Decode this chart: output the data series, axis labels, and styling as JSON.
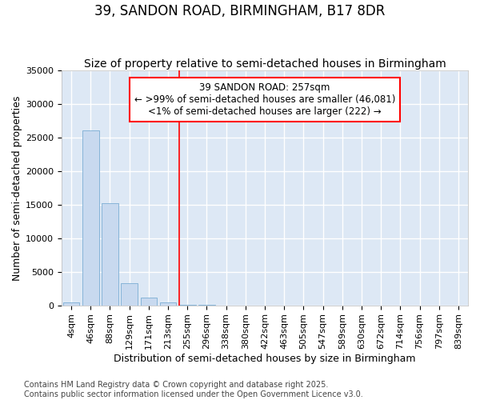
{
  "title": "39, SANDON ROAD, BIRMINGHAM, B17 8DR",
  "subtitle": "Size of property relative to semi-detached houses in Birmingham",
  "xlabel": "Distribution of semi-detached houses by size in Birmingham",
  "ylabel": "Number of semi-detached properties",
  "bar_color": "#c8d9ef",
  "bar_edge_color": "#7aadd4",
  "background_color": "#dde8f5",
  "fig_background": "#ffffff",
  "grid_color": "#ffffff",
  "categories": [
    "4sqm",
    "46sqm",
    "88sqm",
    "129sqm",
    "171sqm",
    "213sqm",
    "255sqm",
    "296sqm",
    "338sqm",
    "380sqm",
    "422sqm",
    "463sqm",
    "505sqm",
    "547sqm",
    "589sqm",
    "630sqm",
    "672sqm",
    "714sqm",
    "756sqm",
    "797sqm",
    "839sqm"
  ],
  "values": [
    400,
    26100,
    15200,
    3300,
    1200,
    400,
    80,
    20,
    5,
    2,
    1,
    0,
    0,
    0,
    0,
    0,
    0,
    0,
    0,
    0,
    0
  ],
  "ylim": [
    0,
    35000
  ],
  "yticks": [
    0,
    5000,
    10000,
    15000,
    20000,
    25000,
    30000,
    35000
  ],
  "red_line_index": 6,
  "annotation_line1": "39 SANDON ROAD: 257sqm",
  "annotation_line2": "← >99% of semi-detached houses are smaller (46,081)",
  "annotation_line3": "<1% of semi-detached houses are larger (222) →",
  "footer_line1": "Contains HM Land Registry data © Crown copyright and database right 2025.",
  "footer_line2": "Contains public sector information licensed under the Open Government Licence v3.0.",
  "title_fontsize": 12,
  "subtitle_fontsize": 10,
  "axis_label_fontsize": 9,
  "tick_fontsize": 8,
  "annotation_fontsize": 8.5,
  "footer_fontsize": 7
}
